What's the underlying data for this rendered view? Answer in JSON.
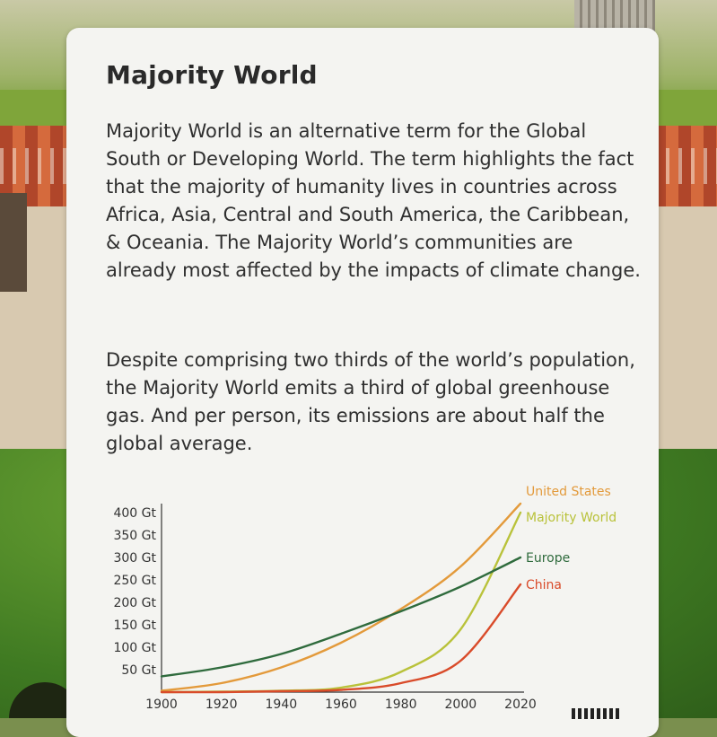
{
  "card": {
    "title": "Majority World",
    "paragraph1": "Majority World is an alternative term for the Global South or Developing World. The term highlights the fact that the majority of humanity lives in countries across Africa, Asia, Central and South America, the Caribbean, & Oceania. The Majority World’s communities are already most affected by the impacts of climate change.",
    "paragraph2": "Despite comprising two thirds of the world’s population, the Majority World emits a third of global greenhouse gas. And per person, its emissions are about half the global average."
  },
  "chart_data": {
    "type": "line",
    "title": "",
    "xlabel": "",
    "ylabel": "",
    "x": [
      1900,
      1920,
      1940,
      1960,
      1980,
      2000,
      2020
    ],
    "x_tick_labels": [
      "1900",
      "1920",
      "1940",
      "1960",
      "1980",
      "2000",
      "2020"
    ],
    "y_tick_labels": [
      "50 Gt",
      "100 Gt",
      "150 Gt",
      "200 Gt",
      "250 Gt",
      "300 Gt",
      "350 Gt",
      "400 Gt"
    ],
    "y_ticks": [
      50,
      100,
      150,
      200,
      250,
      300,
      350,
      400
    ],
    "xlim": [
      1900,
      2020
    ],
    "ylim": [
      0,
      420
    ],
    "series": [
      {
        "name": "United States",
        "color": "#e39a3b",
        "values": [
          3,
          20,
          55,
          110,
          185,
          280,
          420
        ]
      },
      {
        "name": "Majority World",
        "color": "#b9c23a",
        "values": [
          0,
          1,
          3,
          10,
          45,
          140,
          400
        ]
      },
      {
        "name": "Europe",
        "color": "#2f6b3d",
        "values": [
          35,
          55,
          85,
          130,
          180,
          235,
          300
        ]
      },
      {
        "name": "China",
        "color": "#d94b2a",
        "values": [
          0,
          0,
          2,
          5,
          20,
          70,
          240
        ]
      }
    ]
  }
}
